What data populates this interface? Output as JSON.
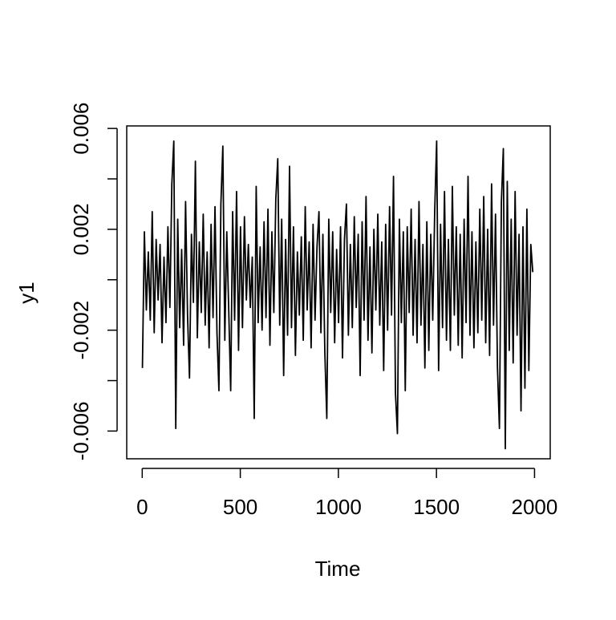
{
  "chart_data": {
    "type": "line",
    "xlabel": "Time",
    "ylabel": "y1",
    "color": "#000000",
    "x": [
      1,
      11,
      21,
      31,
      41,
      51,
      61,
      71,
      81,
      91,
      101,
      111,
      121,
      131,
      141,
      151,
      161,
      171,
      181,
      191,
      201,
      211,
      221,
      231,
      241,
      251,
      261,
      271,
      281,
      291,
      301,
      311,
      321,
      331,
      341,
      351,
      361,
      371,
      381,
      391,
      401,
      411,
      421,
      431,
      441,
      451,
      461,
      471,
      481,
      491,
      501,
      511,
      521,
      531,
      541,
      551,
      561,
      571,
      581,
      591,
      601,
      611,
      621,
      631,
      641,
      651,
      661,
      671,
      681,
      691,
      701,
      711,
      721,
      731,
      741,
      751,
      761,
      771,
      781,
      791,
      801,
      811,
      821,
      831,
      841,
      851,
      861,
      871,
      881,
      891,
      901,
      911,
      921,
      931,
      941,
      951,
      961,
      971,
      981,
      991,
      1001,
      1011,
      1021,
      1031,
      1041,
      1051,
      1061,
      1071,
      1081,
      1091,
      1101,
      1111,
      1121,
      1131,
      1141,
      1151,
      1161,
      1171,
      1181,
      1191,
      1201,
      1211,
      1221,
      1231,
      1241,
      1251,
      1261,
      1271,
      1281,
      1291,
      1301,
      1311,
      1321,
      1331,
      1341,
      1351,
      1361,
      1371,
      1381,
      1391,
      1401,
      1411,
      1421,
      1431,
      1441,
      1451,
      1461,
      1471,
      1481,
      1491,
      1501,
      1511,
      1521,
      1531,
      1541,
      1551,
      1561,
      1571,
      1581,
      1591,
      1601,
      1611,
      1621,
      1631,
      1641,
      1651,
      1661,
      1671,
      1681,
      1691,
      1701,
      1711,
      1721,
      1731,
      1741,
      1751,
      1761,
      1771,
      1781,
      1791,
      1801,
      1811,
      1821,
      1831,
      1841,
      1851,
      1861,
      1871,
      1881,
      1891,
      1901,
      1911,
      1921,
      1931,
      1941,
      1951,
      1961,
      1971,
      1981,
      1991
    ],
    "values": [
      -0.0035,
      0.0019,
      -0.0012,
      0.0011,
      -0.0016,
      0.0027,
      -0.0021,
      0.0016,
      -0.0008,
      0.0014,
      -0.0025,
      0.0009,
      -0.0017,
      0.0021,
      -0.0011,
      0.0038,
      0.0055,
      -0.0059,
      0.0024,
      -0.0019,
      0.0012,
      -0.0026,
      0.0031,
      -0.0014,
      -0.0039,
      0.0018,
      -0.0009,
      0.0047,
      -0.0023,
      0.0015,
      -0.0013,
      0.0026,
      -0.0018,
      0.0011,
      -0.0027,
      0.0022,
      -0.0015,
      0.0029,
      -0.0021,
      -0.0044,
      0.003,
      0.0053,
      -0.0024,
      0.0019,
      -0.0012,
      -0.0044,
      0.0027,
      -0.0016,
      0.0035,
      -0.0028,
      0.0021,
      -0.0019,
      0.0025,
      -0.0008,
      0.0014,
      -0.0011,
      0.0009,
      -0.0055,
      0.0037,
      -0.0017,
      0.0013,
      -0.002,
      0.0023,
      -0.0015,
      0.0028,
      -0.0026,
      0.0019,
      -0.0013,
      0.0032,
      0.0048,
      -0.0018,
      0.0024,
      -0.0038,
      0.0016,
      -0.0022,
      0.0045,
      -0.0019,
      0.0021,
      -0.003,
      0.0011,
      -0.0014,
      0.0017,
      -0.0024,
      0.0029,
      -0.0012,
      0.0015,
      -0.0027,
      0.0022,
      -0.0016,
      0.0013,
      0.0027,
      -0.0021,
      0.0018,
      -0.0029,
      -0.0055,
      0.0024,
      -0.0013,
      0.0019,
      -0.0025,
      0.0012,
      -0.0017,
      0.0021,
      -0.0031,
      0.0016,
      0.003,
      -0.0022,
      0.0014,
      -0.0019,
      0.0025,
      -0.0011,
      0.0018,
      -0.0038,
      0.0023,
      -0.0016,
      0.0033,
      -0.0024,
      0.0013,
      -0.0029,
      0.002,
      -0.0012,
      0.0026,
      -0.0018,
      0.0015,
      -0.0036,
      0.0022,
      -0.002,
      0.0029,
      -0.0014,
      0.0041,
      -0.0045,
      -0.0061,
      0.0024,
      -0.0017,
      0.0019,
      -0.0044,
      0.0021,
      -0.0013,
      0.0028,
      -0.0022,
      0.0016,
      -0.0025,
      0.0031,
      -0.0018,
      0.0014,
      -0.0035,
      0.0023,
      -0.0028,
      0.0018,
      -0.0016,
      0.0027,
      0.0055,
      -0.0036,
      0.0022,
      -0.0019,
      0.0035,
      -0.0024,
      0.0016,
      -0.0028,
      0.0037,
      -0.0014,
      0.0021,
      -0.0026,
      0.0018,
      -0.0031,
      0.0024,
      -0.0017,
      0.0041,
      -0.0022,
      0.0019,
      -0.0027,
      0.0015,
      -0.0021,
      0.0028,
      -0.0016,
      0.0033,
      -0.0025,
      0.002,
      -0.003,
      0.0038,
      -0.0018,
      0.0026,
      -0.0035,
      -0.0059,
      0.0031,
      0.0052,
      -0.0067,
      0.0039,
      -0.0028,
      0.0024,
      -0.0033,
      0.0035,
      -0.0022,
      0.0018,
      -0.0052,
      0.0021,
      -0.0043,
      0.0028,
      -0.0036,
      0.0014,
      0.0003
    ],
    "xlim": [
      -79,
      2080
    ],
    "ylim": [
      -0.0071,
      0.0061
    ],
    "xticks": [
      0,
      500,
      1000,
      1500,
      2000
    ],
    "yticks": [
      -0.006,
      -0.002,
      0.002,
      0.006
    ],
    "yticks_unlabeled": [
      -0.004,
      0,
      0.004
    ]
  }
}
